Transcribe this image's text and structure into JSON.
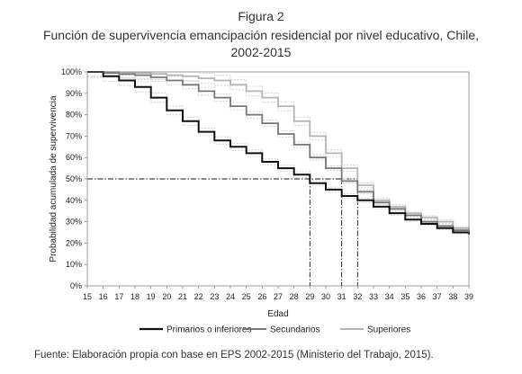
{
  "figure_label": "Figura 2",
  "title": "Función de supervivencia emancipación residencial por nivel educativo, Chile, 2002-2015",
  "source": "Fuente: Elaboración propia con base en EPS 2002-2015 (Ministerio del Trabajo, 2015).",
  "chart_data": {
    "type": "line",
    "step": true,
    "xlabel": "Edad",
    "ylabel": "Probabilidad acumulada de supervivencia",
    "x_ticks": [
      15,
      16,
      17,
      18,
      19,
      20,
      21,
      22,
      23,
      24,
      25,
      26,
      27,
      28,
      29,
      30,
      31,
      32,
      33,
      34,
      35,
      36,
      37,
      38,
      39
    ],
    "y_ticks": [
      0,
      10,
      20,
      30,
      40,
      50,
      60,
      70,
      80,
      90,
      100
    ],
    "y_tick_suffix": "%",
    "xlim": [
      15,
      39
    ],
    "ylim": [
      0,
      100
    ],
    "grid": false,
    "legend_position": "bottom",
    "series": [
      {
        "name": "Primarios o inferiores",
        "color": "#111111",
        "width": 2,
        "band_width": 0.025,
        "x": [
          15,
          16,
          17,
          18,
          19,
          20,
          21,
          22,
          23,
          24,
          25,
          26,
          27,
          28,
          29,
          30,
          31,
          32,
          33,
          34,
          35,
          36,
          37,
          38,
          39
        ],
        "values": [
          100,
          98,
          96,
          93,
          88,
          82,
          77,
          72,
          68,
          65,
          62,
          58,
          55,
          52,
          48,
          45,
          42,
          40,
          37,
          34,
          31,
          29,
          27,
          25,
          24
        ]
      },
      {
        "name": "Secundarios",
        "color": "#777777",
        "width": 1.8,
        "band_width": 0.02,
        "x": [
          15,
          16,
          17,
          18,
          19,
          20,
          21,
          22,
          23,
          24,
          25,
          26,
          27,
          28,
          29,
          30,
          31,
          32,
          33,
          34,
          35,
          36,
          37,
          38,
          39
        ],
        "values": [
          100,
          99.5,
          99,
          98.5,
          97.5,
          96,
          94,
          91,
          88,
          84,
          80,
          76,
          71,
          66,
          60,
          55,
          49,
          44,
          39,
          36,
          33,
          30,
          28,
          26,
          25
        ]
      },
      {
        "name": "Superiores",
        "color": "#b5b5b5",
        "width": 1.8,
        "band_width": 0.025,
        "x": [
          15,
          16,
          17,
          18,
          19,
          20,
          21,
          22,
          23,
          24,
          25,
          26,
          27,
          28,
          29,
          30,
          31,
          32,
          33,
          34,
          35,
          36,
          37,
          38,
          39
        ],
        "values": [
          100,
          100,
          99.8,
          99.5,
          99,
          98.5,
          98,
          97,
          96,
          94,
          91,
          88,
          84,
          77,
          70,
          62,
          55,
          47,
          40,
          37,
          34,
          32,
          30,
          27,
          25
        ]
      }
    ],
    "reference_lines": {
      "y": 50,
      "x_markers": [
        29,
        31,
        32
      ]
    }
  }
}
